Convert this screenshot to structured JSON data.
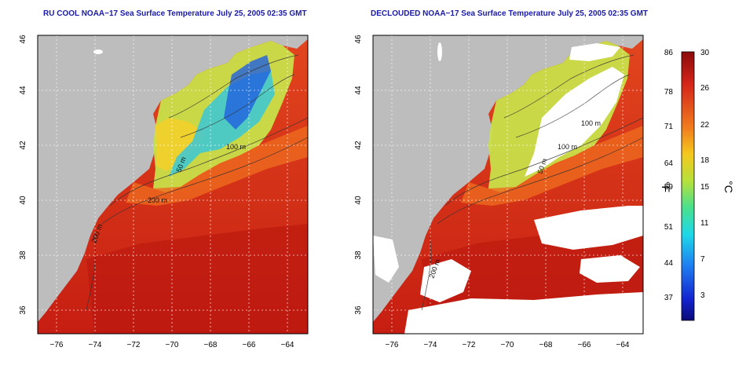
{
  "titles": {
    "left": "RU COOL NOAA−17 Sea Surface Temperature July 25, 2005 02:35 GMT",
    "right": "DECLOUDED NOAA−17 Sea Surface Temperature July 25, 2005 02:35 GMT"
  },
  "axes": {
    "lon_ticks": [
      "−76",
      "−74",
      "−72",
      "−70",
      "−68",
      "−66",
      "−64"
    ],
    "lat_ticks": [
      "36",
      "38",
      "40",
      "42",
      "44",
      "46"
    ]
  },
  "colorbar": {
    "fahrenheit_ticks": [
      "86",
      "78",
      "71",
      "64",
      "59",
      "51",
      "44",
      "37"
    ],
    "celsius_ticks": [
      "30",
      "26",
      "22",
      "18",
      "15",
      "11",
      "7",
      "3"
    ],
    "fahrenheit_unit": "°F",
    "celsius_unit": "°C"
  },
  "contour_labels": {
    "left": [
      "100 m",
      "50 m",
      "200 m",
      "200 m"
    ],
    "right": [
      "100 m",
      "100 m",
      "50 m",
      "200 m"
    ]
  },
  "colors": {
    "land": "#bdbdbd",
    "title": "#1a1aa6",
    "warm": "#d42a1a",
    "cloud": "#ffffff"
  }
}
